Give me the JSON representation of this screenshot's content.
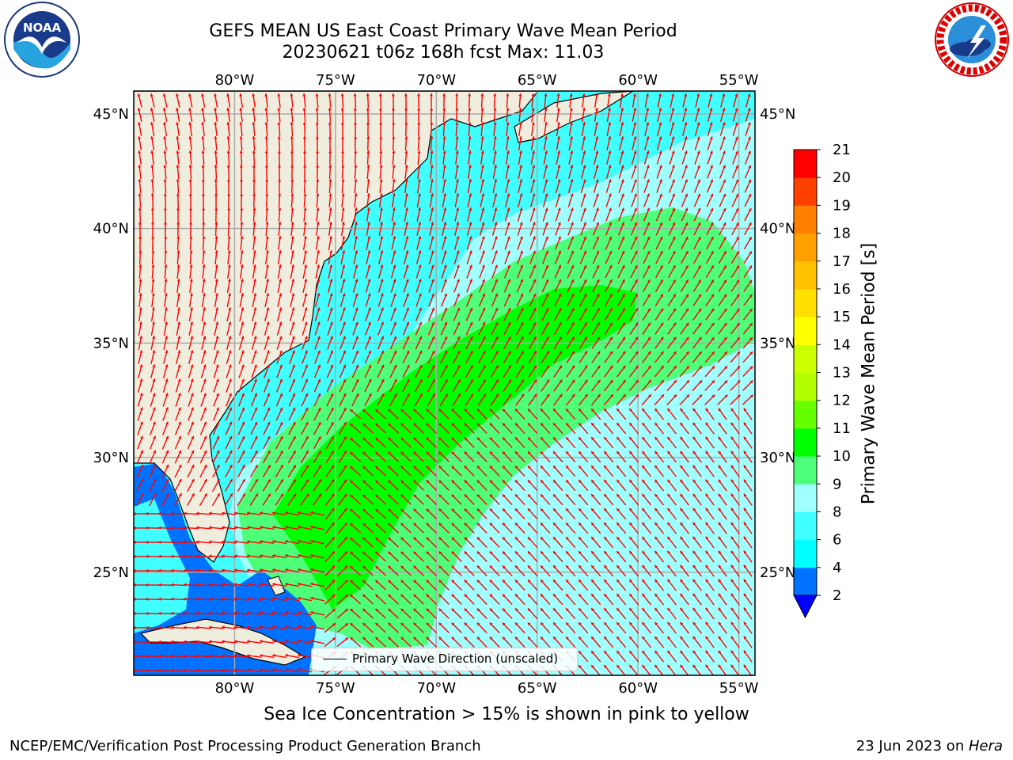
{
  "header": {
    "title_line1": "GEFS MEAN US East Coast Primary Wave Mean Period",
    "title_line2": "20230621 t06z 168h fcst   Max: 11.03"
  },
  "logos": {
    "noaa": {
      "text": "NOAA",
      "ring_text": "NATIONAL OCEANIC AND ATMOSPHERIC ADMINISTRATION · U.S. DEPARTMENT OF COMMERCE"
    },
    "nws": {
      "ring_text": "NATIONAL WEATHER SERVICE"
    }
  },
  "map": {
    "lon_labels": [
      "80°W",
      "75°W",
      "70°W",
      "65°W",
      "60°W",
      "55°W"
    ],
    "lat_labels": [
      "45°N",
      "40°N",
      "35°N",
      "30°N",
      "25°N"
    ],
    "lon_values": [
      -80,
      -75,
      -70,
      -65,
      -60,
      -55
    ],
    "lat_values": [
      45,
      40,
      35,
      30,
      25
    ],
    "extent": {
      "lon_min": -85,
      "lon_max": -54.2,
      "lat_min": 20.5,
      "lat_max": 46
    },
    "legend_text": "Primary Wave Direction (unscaled)",
    "arrow_color": "#ff0000",
    "land_color": "#efedde"
  },
  "colorbar": {
    "label": "Primary Wave Mean Period [s]",
    "ticks": [
      "2",
      "4",
      "6",
      "8",
      "9",
      "10",
      "11",
      "12",
      "13",
      "14",
      "15",
      "16",
      "17",
      "18",
      "19",
      "20",
      "21"
    ],
    "colors": [
      "#0072ff",
      "#00ffff",
      "#40ffff",
      "#a0ffff",
      "#4eff7a",
      "#00ff00",
      "#66ff00",
      "#b3ff00",
      "#ccff00",
      "#ffff00",
      "#ffe000",
      "#ffc000",
      "#ffa000",
      "#ff8000",
      "#ff4000",
      "#ff0000"
    ],
    "under_color": "#0000ff"
  },
  "notes": {
    "ice": "Sea Ice Concentration > 15% is shown in pink to yellow"
  },
  "footer": {
    "left": "NCEP/EMC/Verification Post Processing Product Generation Branch",
    "right_prefix": "23 Jun 2023 on ",
    "right_host": "Hera"
  }
}
